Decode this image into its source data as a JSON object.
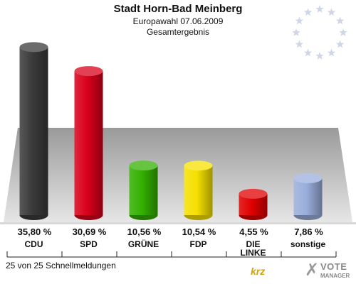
{
  "header": {
    "title": "Stadt Horn-Bad Meinberg",
    "subtitle": "Europawahl 07.06.2009",
    "subtitle2": "Gesamtergebnis"
  },
  "footer": {
    "text": "25 von 25 Schnellmeldungen",
    "krz_logo": "krz",
    "vote_manager_line1": "VOTE",
    "vote_manager_line2": "MANAGER"
  },
  "colors": {
    "background": "#ffffff",
    "floor": "#c9c9c9",
    "eu_stars": "#cfd6e6"
  },
  "chart_data": {
    "type": "bar",
    "categories": [
      "CDU",
      "SPD",
      "GRÜNE",
      "FDP",
      "DIE LINKE",
      "sonstige"
    ],
    "category_lines": [
      [
        "CDU"
      ],
      [
        "SPD"
      ],
      [
        "GRÜNE"
      ],
      [
        "FDP"
      ],
      [
        "DIE",
        "LINKE"
      ],
      [
        "sonstige"
      ]
    ],
    "values": [
      35.8,
      30.69,
      10.56,
      10.54,
      4.55,
      7.86
    ],
    "value_labels": [
      "35,80 %",
      "30,69 %",
      "10,56 %",
      "10,54 %",
      "4,55 %",
      "7,86 %"
    ],
    "colors": [
      "#3a3a3a",
      "#d9001b",
      "#33b000",
      "#f5e000",
      "#e00000",
      "#9aaedc"
    ],
    "ylim": [
      0,
      36
    ]
  }
}
